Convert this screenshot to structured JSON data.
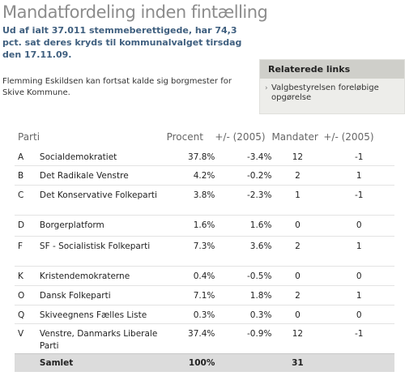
{
  "page": {
    "title": "Mandatfordeling inden fintælling",
    "lead": "Ud af ialt 37.011 stemmeberettigede, har 74,3 pct. sat deres kryds til kommunalvalget tirsdag den 17.11.09.",
    "body": "Flemming Eskildsen kan fortsat kalde sig borgmester for Skive Kommune."
  },
  "related": {
    "heading": "Relaterede links",
    "items": [
      {
        "label": "Valgbestyrelsen foreløbige opgørelse"
      }
    ]
  },
  "table": {
    "headers": {
      "party": "Parti",
      "percent": "Procent",
      "percent_change": "+/- (2005)",
      "seats": "Mandater",
      "seats_change": "+/- (2005)"
    },
    "rows": [
      {
        "letter": "A",
        "name": "Socialdemokratiet",
        "percent": "37.8%",
        "percent_change": "-3.4%",
        "seats": "12",
        "seats_change": "-1"
      },
      {
        "letter": "B",
        "name": "Det Radikale Venstre",
        "percent": "4.2%",
        "percent_change": "-0.2%",
        "seats": "2",
        "seats_change": "1"
      },
      {
        "letter": "C",
        "name": "Det Konservative Folkeparti",
        "percent": "3.8%",
        "percent_change": "-2.3%",
        "seats": "1",
        "seats_change": "-1"
      },
      {
        "letter": "D",
        "name": "Borgerplatform",
        "percent": "1.6%",
        "percent_change": "1.6%",
        "seats": "0",
        "seats_change": "0"
      },
      {
        "letter": "F",
        "name": "SF - Socialistisk Folkeparti",
        "percent": "7.3%",
        "percent_change": "3.6%",
        "seats": "2",
        "seats_change": "1"
      },
      {
        "letter": "K",
        "name": "Kristendemokraterne",
        "percent": "0.4%",
        "percent_change": "-0.5%",
        "seats": "0",
        "seats_change": "0"
      },
      {
        "letter": "O",
        "name": "Dansk Folkeparti",
        "percent": "7.1%",
        "percent_change": "1.8%",
        "seats": "2",
        "seats_change": "1"
      },
      {
        "letter": "Q",
        "name": "Skiveegnens Fælles Liste",
        "percent": "0.3%",
        "percent_change": "0.3%",
        "seats": "0",
        "seats_change": "0"
      },
      {
        "letter": "V",
        "name": "Venstre, Danmarks Liberale Parti",
        "percent": "37.4%",
        "percent_change": "-0.9%",
        "seats": "12",
        "seats_change": "-1"
      }
    ],
    "total": {
      "label": "Samlet",
      "percent": "100%",
      "seats": "31"
    }
  }
}
